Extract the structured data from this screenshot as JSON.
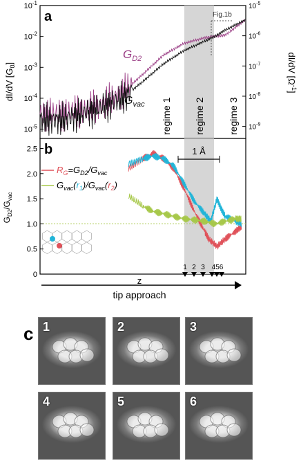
{
  "panel_labels": {
    "a": "a",
    "b": "b",
    "c": "c"
  },
  "fig_ref": "Fig.1b",
  "regimes": [
    "regime 1",
    "regime 2",
    "regime 3"
  ],
  "z_label": "z",
  "tip_approach": "tip approach",
  "angstrom_label": "1 Å",
  "stm_numbers": [
    "1",
    "2",
    "3",
    "4",
    "5",
    "6"
  ],
  "marker_labels": [
    "1",
    "2",
    "3",
    "456"
  ],
  "colors": {
    "gd2": "#9b3f86",
    "gvac": "#111111",
    "rg": "#e0525a",
    "cyan": "#22b5d8",
    "green": "#a7c84a",
    "shade": "#d6d6d6"
  },
  "chart_data": [
    {
      "type": "line",
      "panel": "a",
      "ylabel": "dI/dV [G0]",
      "ylabel_right": "dI/dV [Ω-1]",
      "xlabel": "",
      "y_scale": "log",
      "ylim": [
        5e-06,
        0.1
      ],
      "ylim_right": [
        4e-10,
        1e-05
      ],
      "yticks": [
        "10-5",
        "10-4",
        "10-3",
        "10-2",
        "10-1"
      ],
      "yticks_right": [
        "10-9",
        "10-8",
        "10-7",
        "10-6",
        "10-5"
      ],
      "series": [
        {
          "name": "GD2",
          "color": "#9b3f86",
          "x": [
            0.0,
            0.1,
            0.2,
            0.3,
            0.4,
            0.5,
            0.6,
            0.7,
            0.8,
            0.85,
            0.9,
            1.0
          ],
          "y": [
            3e-05,
            3e-05,
            4e-05,
            6e-05,
            0.00015,
            0.0006,
            0.0025,
            0.006,
            0.009,
            0.01,
            0.011,
            0.035
          ]
        },
        {
          "name": "Gvac",
          "color": "#111111",
          "x": [
            0.0,
            0.1,
            0.2,
            0.3,
            0.4,
            0.5,
            0.6,
            0.7,
            0.8,
            0.85,
            0.9,
            1.0
          ],
          "y": [
            2e-05,
            2e-05,
            3e-05,
            5e-05,
            0.0001,
            0.00035,
            0.0013,
            0.0035,
            0.007,
            0.01,
            0.016,
            0.035
          ]
        }
      ]
    },
    {
      "type": "line",
      "panel": "b",
      "ylabel": "GD2/Gvac",
      "xlabel": "z",
      "ylim": [
        0,
        2.7
      ],
      "yticks": [
        "0",
        "0.5",
        "1.0",
        "1.5",
        "2.0",
        "2.5"
      ],
      "reference_line": 1.0,
      "legend": [
        "RG=GD2/Gvac",
        "Gvac(r1)/Gvac(r2)"
      ],
      "series": [
        {
          "name": "RG",
          "color": "#e0525a",
          "x": [
            0.43,
            0.5,
            0.55,
            0.6,
            0.65,
            0.7,
            0.75,
            0.8,
            0.82,
            0.86,
            0.9,
            0.95,
            0.98
          ],
          "y": [
            2.1,
            2.3,
            2.4,
            2.3,
            2.1,
            1.7,
            1.25,
            0.85,
            0.7,
            0.55,
            0.7,
            0.85,
            0.95
          ]
        },
        {
          "name": "cyan",
          "color": "#22b5d8",
          "x": [
            0.43,
            0.5,
            0.55,
            0.6,
            0.65,
            0.7,
            0.75,
            0.8,
            0.83,
            0.86,
            0.88,
            0.9,
            0.95,
            0.98
          ],
          "y": [
            2.2,
            2.3,
            2.35,
            2.3,
            2.15,
            1.8,
            1.45,
            1.2,
            1.05,
            1.5,
            1.3,
            1.15,
            1.05,
            1.0
          ]
        },
        {
          "name": "Gvac(r1)/Gvac(r2)",
          "color": "#a7c84a",
          "x": [
            0.43,
            0.5,
            0.55,
            0.6,
            0.65,
            0.7,
            0.75,
            0.8,
            0.85,
            0.9,
            0.95,
            0.98
          ],
          "y": [
            1.55,
            1.35,
            1.25,
            1.2,
            1.15,
            1.1,
            1.08,
            1.05,
            1.0,
            1.05,
            1.1,
            1.1
          ]
        }
      ]
    }
  ]
}
